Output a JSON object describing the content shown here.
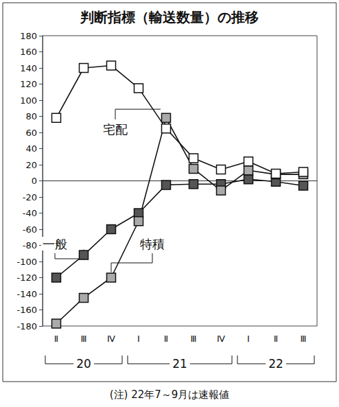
{
  "chart_data": {
    "type": "line",
    "title": "判断指標（輸送数量）の推移",
    "categories": [
      "Ⅱ",
      "Ⅲ",
      "Ⅳ",
      "Ⅰ",
      "Ⅱ",
      "Ⅲ",
      "Ⅳ",
      "Ⅰ",
      "Ⅱ",
      "Ⅲ"
    ],
    "x_groups": [
      {
        "label": "20",
        "from": 0,
        "to": 2
      },
      {
        "label": "21",
        "from": 3,
        "to": 6
      },
      {
        "label": "22",
        "from": 7,
        "to": 9
      }
    ],
    "annotations": [
      "(注) 22年7～9月は速報値"
    ],
    "series": [
      {
        "name": "一般",
        "color": "#555555",
        "values": [
          -120,
          -92,
          -60,
          -40,
          -5,
          -4,
          -4,
          2,
          -1,
          -6
        ]
      },
      {
        "name": "特積",
        "color": "#aaaaaa",
        "values": [
          -177,
          -145,
          -120,
          -50,
          78,
          15,
          -12,
          13,
          8,
          8
        ]
      },
      {
        "name": "宅配",
        "color": "#ffffff",
        "values": [
          78,
          140,
          143,
          115,
          65,
          28,
          14,
          24,
          9,
          11
        ]
      }
    ],
    "ylim": [
      -180,
      180
    ],
    "yticks": [
      -180,
      -160,
      -140,
      -120,
      -100,
      -80,
      -60,
      -40,
      -20,
      0,
      20,
      40,
      60,
      80,
      100,
      120,
      140,
      160,
      180
    ],
    "grid": false,
    "marker": "square"
  }
}
